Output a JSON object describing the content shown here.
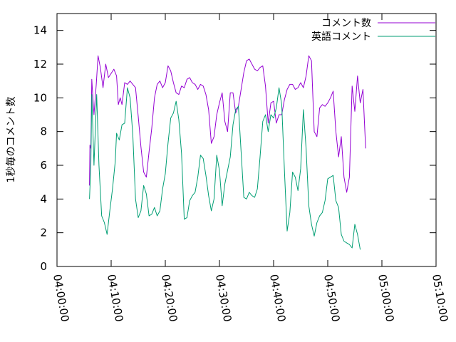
{
  "chart_data": {
    "type": "line",
    "ylabel": "1秒毎のコメント数",
    "xlabel": "",
    "title": "",
    "ylim": [
      0,
      15
    ],
    "xlim": [
      "04:00:00",
      "05:10:00"
    ],
    "yticks": [
      "0",
      "2",
      "4",
      "6",
      "8",
      "10",
      "12",
      "14"
    ],
    "xticks": [
      "04:00:00",
      "04:10:00",
      "04:20:00",
      "04:30:00",
      "04:40:00",
      "04:50:00",
      "05:00:00",
      "05:10:00"
    ],
    "grid": false,
    "legend_position": "top-right",
    "series": [
      {
        "name": "コメント数",
        "color": "#9400d3",
        "points": [
          [
            "04:06:00",
            4.8
          ],
          [
            "04:06:05",
            7.2
          ],
          [
            "04:06:15",
            7.0
          ],
          [
            "04:06:25",
            11.1
          ],
          [
            "04:06:50",
            9.0
          ],
          [
            "04:07:15",
            10.8
          ],
          [
            "04:07:35",
            12.5
          ],
          [
            "04:08:00",
            11.8
          ],
          [
            "04:08:30",
            10.6
          ],
          [
            "04:09:00",
            12.0
          ],
          [
            "04:09:30",
            11.2
          ],
          [
            "04:10:30",
            11.7
          ],
          [
            "04:11:00",
            11.3
          ],
          [
            "04:11:20",
            9.6
          ],
          [
            "04:11:40",
            10.0
          ],
          [
            "04:12:00",
            9.6
          ],
          [
            "04:12:30",
            10.9
          ],
          [
            "04:13:00",
            10.8
          ],
          [
            "04:13:30",
            11.0
          ],
          [
            "04:14:00",
            10.8
          ],
          [
            "04:14:30",
            10.6
          ],
          [
            "04:15:00",
            8.9
          ],
          [
            "04:15:30",
            7.1
          ],
          [
            "04:16:00",
            5.6
          ],
          [
            "04:16:30",
            5.3
          ],
          [
            "04:17:00",
            6.8
          ],
          [
            "04:17:30",
            8.2
          ],
          [
            "04:18:00",
            10.0
          ],
          [
            "04:18:30",
            10.8
          ],
          [
            "04:19:00",
            11.0
          ],
          [
            "04:19:30",
            10.6
          ],
          [
            "04:20:00",
            10.9
          ],
          [
            "04:20:30",
            11.9
          ],
          [
            "04:21:00",
            11.6
          ],
          [
            "04:21:30",
            10.9
          ],
          [
            "04:22:00",
            10.3
          ],
          [
            "04:22:30",
            10.2
          ],
          [
            "04:23:00",
            10.7
          ],
          [
            "04:23:30",
            10.6
          ],
          [
            "04:24:00",
            11.1
          ],
          [
            "04:24:30",
            11.2
          ],
          [
            "04:25:00",
            10.9
          ],
          [
            "04:25:30",
            10.8
          ],
          [
            "04:26:00",
            10.5
          ],
          [
            "04:26:30",
            10.8
          ],
          [
            "04:27:00",
            10.7
          ],
          [
            "04:27:30",
            10.2
          ],
          [
            "04:28:00",
            9.3
          ],
          [
            "04:28:30",
            7.3
          ],
          [
            "04:29:00",
            7.7
          ],
          [
            "04:29:30",
            9.0
          ],
          [
            "04:30:00",
            9.7
          ],
          [
            "04:30:30",
            10.3
          ],
          [
            "04:31:00",
            8.6
          ],
          [
            "04:31:30",
            8.0
          ],
          [
            "04:32:00",
            10.3
          ],
          [
            "04:32:30",
            10.3
          ],
          [
            "04:33:00",
            9.1
          ],
          [
            "04:33:30",
            9.5
          ],
          [
            "04:34:00",
            10.5
          ],
          [
            "04:34:30",
            11.5
          ],
          [
            "04:35:00",
            12.2
          ],
          [
            "04:35:30",
            12.3
          ],
          [
            "04:36:00",
            12.0
          ],
          [
            "04:36:30",
            11.7
          ],
          [
            "04:37:00",
            11.6
          ],
          [
            "04:37:30",
            11.8
          ],
          [
            "04:38:00",
            11.9
          ],
          [
            "04:38:30",
            10.7
          ],
          [
            "04:39:00",
            8.5
          ],
          [
            "04:39:30",
            9.7
          ],
          [
            "04:40:00",
            9.8
          ],
          [
            "04:40:30",
            8.5
          ],
          [
            "04:41:00",
            9.0
          ],
          [
            "04:41:30",
            9.0
          ],
          [
            "04:42:00",
            9.9
          ],
          [
            "04:42:30",
            10.5
          ],
          [
            "04:43:00",
            10.8
          ],
          [
            "04:43:30",
            10.8
          ],
          [
            "04:44:00",
            10.5
          ],
          [
            "04:44:30",
            10.6
          ],
          [
            "04:45:00",
            10.9
          ],
          [
            "04:45:30",
            10.6
          ],
          [
            "04:46:00",
            11.3
          ],
          [
            "04:46:30",
            12.5
          ],
          [
            "04:47:00",
            12.2
          ],
          [
            "04:47:30",
            8.0
          ],
          [
            "04:48:00",
            7.7
          ],
          [
            "04:48:30",
            9.4
          ],
          [
            "04:49:00",
            9.6
          ],
          [
            "04:49:30",
            9.5
          ],
          [
            "04:50:00",
            9.7
          ],
          [
            "04:50:30",
            10.0
          ],
          [
            "04:51:00",
            10.4
          ],
          [
            "04:51:30",
            8.0
          ],
          [
            "04:52:00",
            6.5
          ],
          [
            "04:52:30",
            7.7
          ],
          [
            "04:53:00",
            5.3
          ],
          [
            "04:53:30",
            4.4
          ],
          [
            "04:54:00",
            5.3
          ],
          [
            "04:54:30",
            10.7
          ],
          [
            "04:55:00",
            9.2
          ],
          [
            "04:55:30",
            11.3
          ],
          [
            "04:56:00",
            9.7
          ],
          [
            "04:56:30",
            10.5
          ],
          [
            "04:57:00",
            7.0
          ]
        ]
      },
      {
        "name": "英語コメント",
        "color": "#009e73",
        "points": [
          [
            "04:06:00",
            4.0
          ],
          [
            "04:06:15",
            6.0
          ],
          [
            "04:06:25",
            10.2
          ],
          [
            "04:06:50",
            6.0
          ],
          [
            "04:07:20",
            10.2
          ],
          [
            "04:07:45",
            6.0
          ],
          [
            "04:08:15",
            3.0
          ],
          [
            "04:08:45",
            2.6
          ],
          [
            "04:09:15",
            1.9
          ],
          [
            "04:09:45",
            3.3
          ],
          [
            "04:10:15",
            4.6
          ],
          [
            "04:10:45",
            6.2
          ],
          [
            "04:11:00",
            7.9
          ],
          [
            "04:11:30",
            7.5
          ],
          [
            "04:12:00",
            8.4
          ],
          [
            "04:12:30",
            8.5
          ],
          [
            "04:13:00",
            10.6
          ],
          [
            "04:13:30",
            10.0
          ],
          [
            "04:14:00",
            7.8
          ],
          [
            "04:14:30",
            4.0
          ],
          [
            "04:15:00",
            2.9
          ],
          [
            "04:15:30",
            3.3
          ],
          [
            "04:16:00",
            4.8
          ],
          [
            "04:16:30",
            4.3
          ],
          [
            "04:17:00",
            3.0
          ],
          [
            "04:17:30",
            3.1
          ],
          [
            "04:18:00",
            3.5
          ],
          [
            "04:18:30",
            3.0
          ],
          [
            "04:19:00",
            3.3
          ],
          [
            "04:19:30",
            4.6
          ],
          [
            "04:20:00",
            5.5
          ],
          [
            "04:20:30",
            7.3
          ],
          [
            "04:21:00",
            8.8
          ],
          [
            "04:21:30",
            9.1
          ],
          [
            "04:22:00",
            9.8
          ],
          [
            "04:22:30",
            8.7
          ],
          [
            "04:23:00",
            6.7
          ],
          [
            "04:23:30",
            2.8
          ],
          [
            "04:24:00",
            2.9
          ],
          [
            "04:24:30",
            3.9
          ],
          [
            "04:25:00",
            4.2
          ],
          [
            "04:25:30",
            4.4
          ],
          [
            "04:26:00",
            5.3
          ],
          [
            "04:26:30",
            6.6
          ],
          [
            "04:27:00",
            6.4
          ],
          [
            "04:27:30",
            5.4
          ],
          [
            "04:28:00",
            4.2
          ],
          [
            "04:28:30",
            3.3
          ],
          [
            "04:29:00",
            4.0
          ],
          [
            "04:29:30",
            6.6
          ],
          [
            "04:30:00",
            5.7
          ],
          [
            "04:30:30",
            3.6
          ],
          [
            "04:31:00",
            4.9
          ],
          [
            "04:31:30",
            5.7
          ],
          [
            "04:32:00",
            6.5
          ],
          [
            "04:32:30",
            8.4
          ],
          [
            "04:33:00",
            9.3
          ],
          [
            "04:33:30",
            9.5
          ],
          [
            "04:34:00",
            6.8
          ],
          [
            "04:34:30",
            4.1
          ],
          [
            "04:35:00",
            4.0
          ],
          [
            "04:35:30",
            4.4
          ],
          [
            "04:36:00",
            4.2
          ],
          [
            "04:36:30",
            4.1
          ],
          [
            "04:37:00",
            4.6
          ],
          [
            "04:37:30",
            6.5
          ],
          [
            "04:38:00",
            8.6
          ],
          [
            "04:38:30",
            9.0
          ],
          [
            "04:39:00",
            8.0
          ],
          [
            "04:39:30",
            9.0
          ],
          [
            "04:40:00",
            8.8
          ],
          [
            "04:40:30",
            9.4
          ],
          [
            "04:41:00",
            10.6
          ],
          [
            "04:41:30",
            9.6
          ],
          [
            "04:42:00",
            5.7
          ],
          [
            "04:42:30",
            2.1
          ],
          [
            "04:43:00",
            3.2
          ],
          [
            "04:43:30",
            5.6
          ],
          [
            "04:44:00",
            5.3
          ],
          [
            "04:44:30",
            4.5
          ],
          [
            "04:45:00",
            5.8
          ],
          [
            "04:45:30",
            9.3
          ],
          [
            "04:46:00",
            7.0
          ],
          [
            "04:46:30",
            3.6
          ],
          [
            "04:47:00",
            2.5
          ],
          [
            "04:47:30",
            1.8
          ],
          [
            "04:48:00",
            2.6
          ],
          [
            "04:48:30",
            3.0
          ],
          [
            "04:49:00",
            3.2
          ],
          [
            "04:49:30",
            3.9
          ],
          [
            "04:50:00",
            5.2
          ],
          [
            "04:50:30",
            5.3
          ],
          [
            "04:51:00",
            5.4
          ],
          [
            "04:51:30",
            3.9
          ],
          [
            "04:52:00",
            3.5
          ],
          [
            "04:52:30",
            1.9
          ],
          [
            "04:53:00",
            1.5
          ],
          [
            "04:53:30",
            1.4
          ],
          [
            "04:54:00",
            1.3
          ],
          [
            "04:54:30",
            1.1
          ],
          [
            "04:55:00",
            2.5
          ],
          [
            "04:55:30",
            1.9
          ],
          [
            "04:56:00",
            1.0
          ]
        ]
      }
    ]
  }
}
